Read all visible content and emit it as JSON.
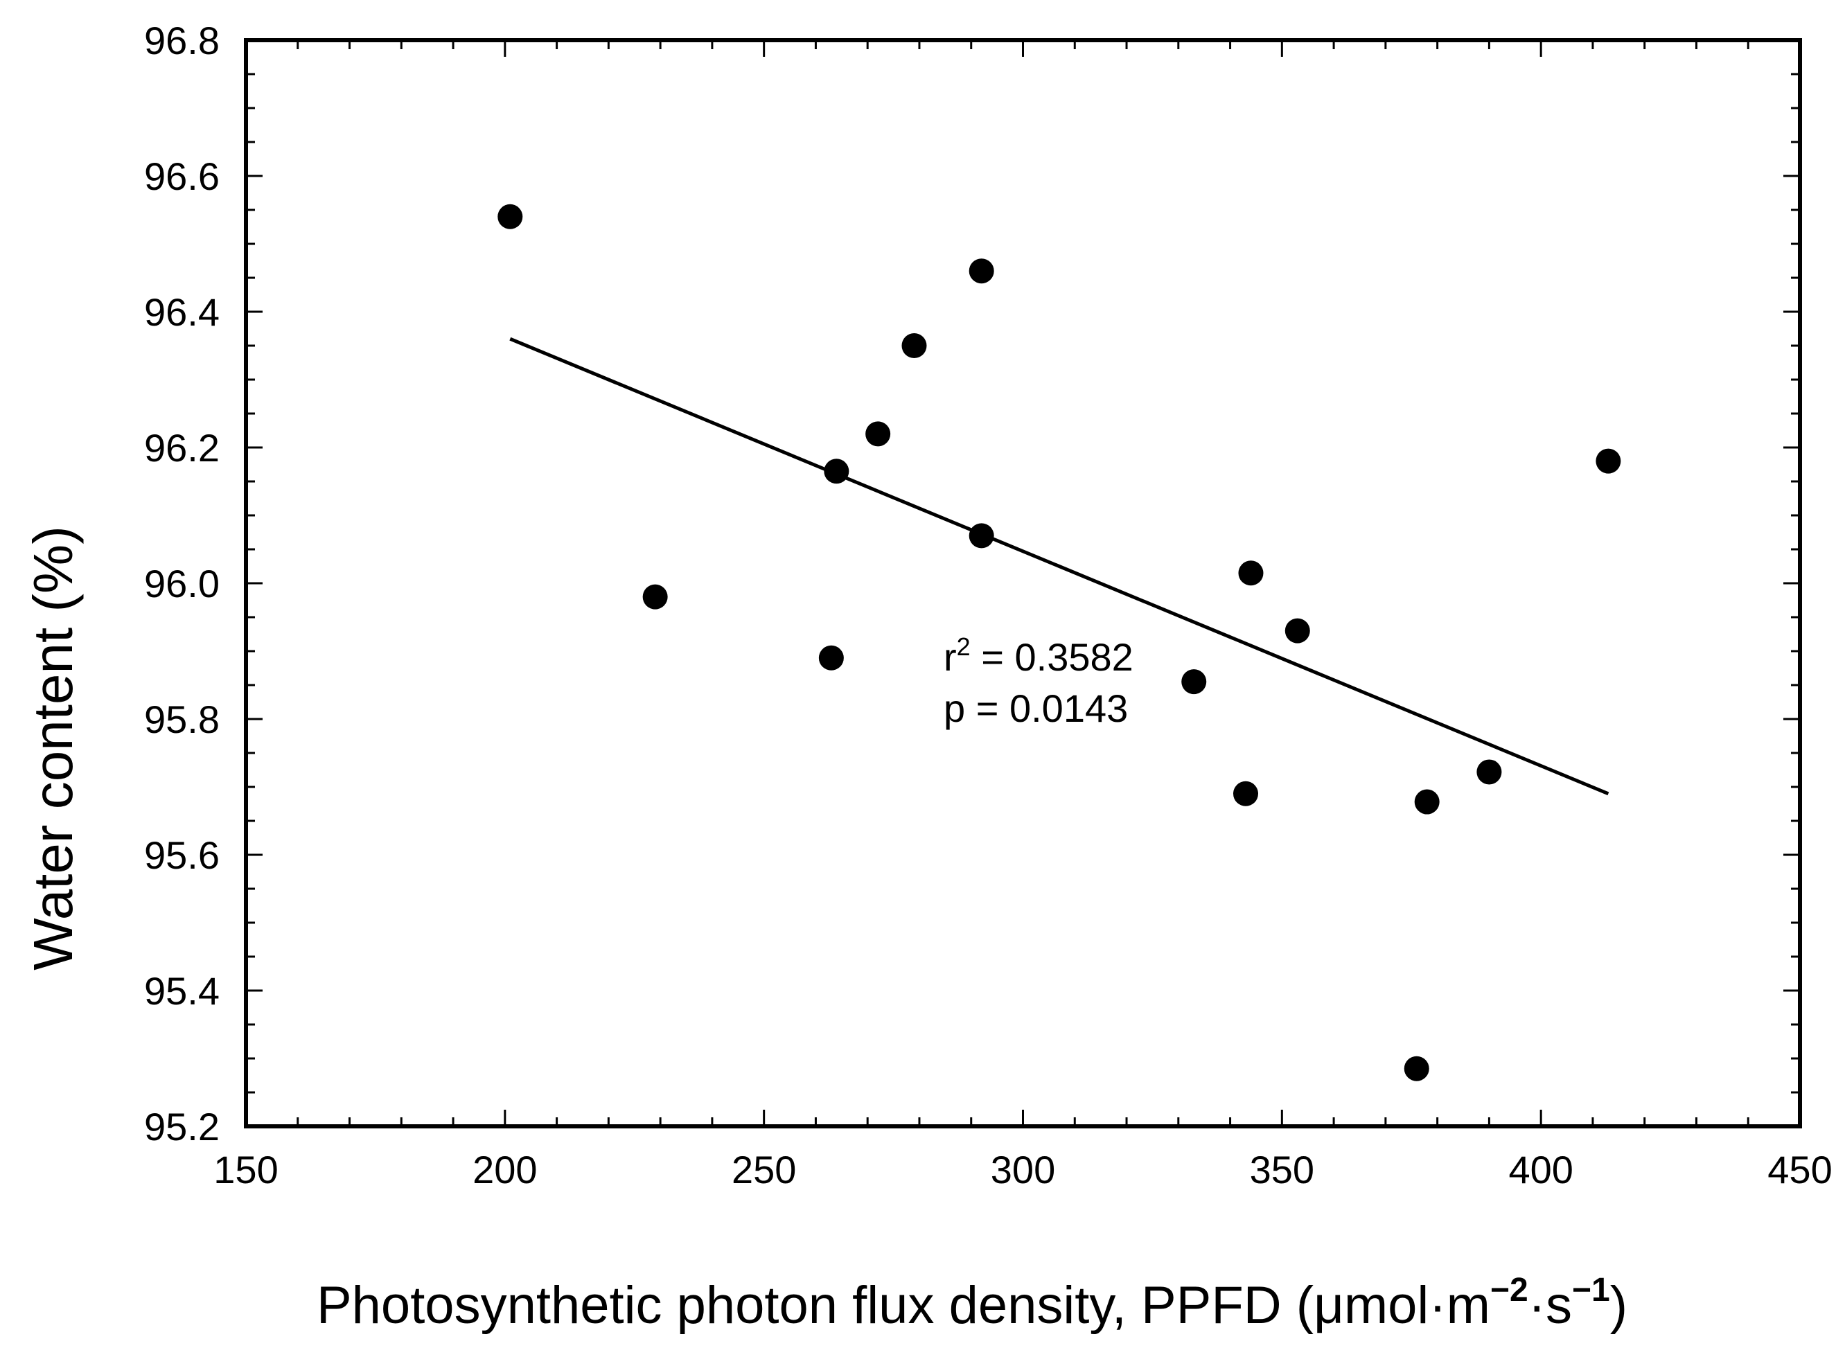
{
  "chart_data": {
    "type": "scatter",
    "title": "",
    "xlabel": "Photosynthetic photon flux density, PPFD (μmol·m−2·s−1)",
    "xlabel_parts": {
      "main": "Photosynthetic photon flux density, PPFD (μmol·m",
      "exp1": "−2",
      "mid": "·s",
      "exp2": "−1",
      "end": ")"
    },
    "ylabel": "Water content (%)",
    "xlim": [
      150,
      450
    ],
    "ylim": [
      95.2,
      96.8
    ],
    "xticks": [
      150,
      200,
      250,
      300,
      350,
      400,
      450
    ],
    "xtick_labels": [
      "150",
      "200",
      "250",
      "300",
      "350",
      "400",
      "450"
    ],
    "yticks": [
      95.2,
      95.4,
      95.6,
      95.8,
      96.0,
      96.2,
      96.4,
      96.6,
      96.8
    ],
    "ytick_labels": [
      "95.2",
      "95.4",
      "95.6",
      "95.8",
      "96.0",
      "96.2",
      "96.4",
      "96.6",
      "96.8"
    ],
    "x_minor_step": 10,
    "y_minor_step": 0.05,
    "grid": false,
    "series": [
      {
        "points": [
          {
            "x": 201,
            "y": 96.54
          },
          {
            "x": 229,
            "y": 95.98
          },
          {
            "x": 263,
            "y": 95.89
          },
          {
            "x": 264,
            "y": 96.165
          },
          {
            "x": 272,
            "y": 96.22
          },
          {
            "x": 279,
            "y": 96.35
          },
          {
            "x": 292,
            "y": 96.46
          },
          {
            "x": 292,
            "y": 96.07
          },
          {
            "x": 333,
            "y": 95.855
          },
          {
            "x": 343,
            "y": 95.69
          },
          {
            "x": 344,
            "y": 96.015
          },
          {
            "x": 353,
            "y": 95.93
          },
          {
            "x": 376,
            "y": 95.285
          },
          {
            "x": 378,
            "y": 95.678
          },
          {
            "x": 390,
            "y": 95.722
          },
          {
            "x": 413,
            "y": 96.18
          }
        ]
      }
    ],
    "regression_line": {
      "x": [
        201,
        413
      ],
      "y": [
        96.36,
        95.69
      ]
    },
    "annotations": {
      "r_label": "r",
      "r_exp": "2",
      "r_value": " = 0.3582",
      "p_text": "p = 0.0143"
    },
    "colors": {
      "marker": "#000000",
      "line": "#000000",
      "axis": "#000000"
    }
  }
}
